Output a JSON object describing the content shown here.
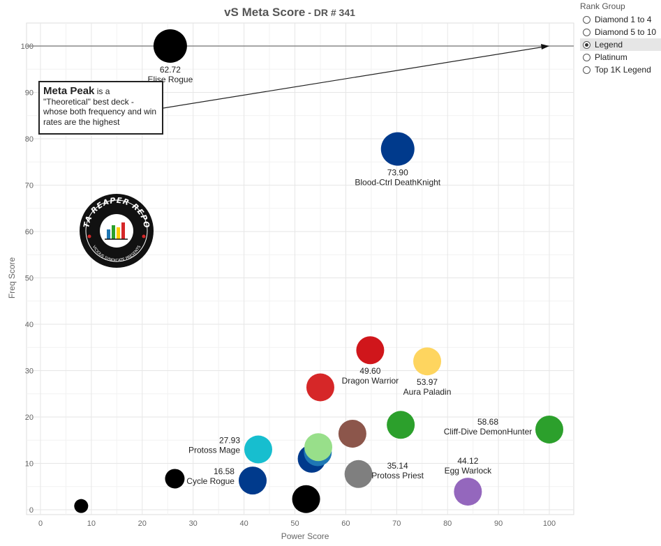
{
  "title": "vS Meta Score",
  "title_suffix": " - DR # 341",
  "legend": {
    "title": "Rank Group",
    "items": [
      "Diamond 1 to 4",
      "Diamond 5 to 10",
      "Legend",
      "Platinum",
      "Top 1K Legend"
    ],
    "selected": "Legend"
  },
  "annotation": {
    "bold": "Meta Peak",
    "text": " is a \"Theoretical\" best deck - whose both frequency and win rates are the highest"
  },
  "logo": {
    "text_top": "DATA REAPER REPORT",
    "text_bottom": "VICIOUS SYNDICATE PRESENTS"
  },
  "chart_data": {
    "type": "scatter",
    "xlabel": "Power Score",
    "ylabel": "Freq Score",
    "xlim": [
      0,
      105
    ],
    "ylim": [
      -1,
      105
    ],
    "xticks": [
      0,
      10,
      20,
      30,
      40,
      50,
      60,
      70,
      80,
      90,
      100
    ],
    "yticks": [
      0,
      10,
      20,
      30,
      40,
      50,
      60,
      70,
      80,
      90,
      100
    ],
    "reference_line_y": 100,
    "arrow_to": [
      100,
      100
    ],
    "points": [
      {
        "x": 25.5,
        "y": 100,
        "color": "#000000",
        "score": "62.72",
        "name": "Elise Rogue",
        "label_pos": "below"
      },
      {
        "x": 70.2,
        "y": 77.8,
        "color": "#003a8c",
        "score": "73.90",
        "name": "Blood-Ctrl DeathKnight",
        "label_pos": "below"
      },
      {
        "x": 64.8,
        "y": 34.4,
        "color": "#d0161b",
        "score": "49.60",
        "name": "Dragon Warrior",
        "label_pos": "below"
      },
      {
        "x": 76.0,
        "y": 32.0,
        "color": "#fed55f",
        "score": "53.97",
        "name": "Aura Paladin",
        "label_pos": "below"
      },
      {
        "x": 55.0,
        "y": 26.4,
        "color": "#d62728",
        "score": "",
        "name": "",
        "label_pos": "none"
      },
      {
        "x": 100.0,
        "y": 17.3,
        "color": "#2ca02c",
        "score": "58.68",
        "name": "Cliff-Dive DemonHunter",
        "label_pos": "left"
      },
      {
        "x": 70.8,
        "y": 18.3,
        "color": "#2ca02c",
        "score": "",
        "name": "",
        "label_pos": "none"
      },
      {
        "x": 61.3,
        "y": 16.4,
        "color": "#8c564b",
        "score": "",
        "name": "",
        "label_pos": "none"
      },
      {
        "x": 42.8,
        "y": 13.0,
        "color": "#17becf",
        "score": "27.93",
        "name": "Protoss Mage",
        "label_pos": "left"
      },
      {
        "x": 53.3,
        "y": 11.0,
        "color": "#003a8c",
        "score": "",
        "name": "",
        "label_pos": "none"
      },
      {
        "x": 54.5,
        "y": 12.4,
        "color": "#1f77b4",
        "score": "",
        "name": "",
        "label_pos": "none"
      },
      {
        "x": 54.6,
        "y": 13.5,
        "color": "#98df8a",
        "score": "",
        "name": "",
        "label_pos": "none"
      },
      {
        "x": 62.5,
        "y": 7.7,
        "color": "#7f7f7f",
        "score": "35.14",
        "name": "Protoss Priest",
        "label_pos": "right"
      },
      {
        "x": 41.7,
        "y": 6.3,
        "color": "#003a8c",
        "score": "16.58",
        "name": "Cycle Rogue",
        "label_pos": "left"
      },
      {
        "x": 26.4,
        "y": 6.7,
        "color": "#000000",
        "score": "",
        "name": "",
        "label_pos": "none"
      },
      {
        "x": 84.0,
        "y": 3.9,
        "color": "#9467bd",
        "score": "44.12",
        "name": "Egg Warlock",
        "label_pos": "above"
      },
      {
        "x": 52.2,
        "y": 2.3,
        "color": "#000000",
        "score": "",
        "name": "",
        "label_pos": "none"
      },
      {
        "x": 8.0,
        "y": 0.8,
        "color": "#000000",
        "score": "",
        "name": "",
        "label_pos": "none"
      }
    ]
  }
}
